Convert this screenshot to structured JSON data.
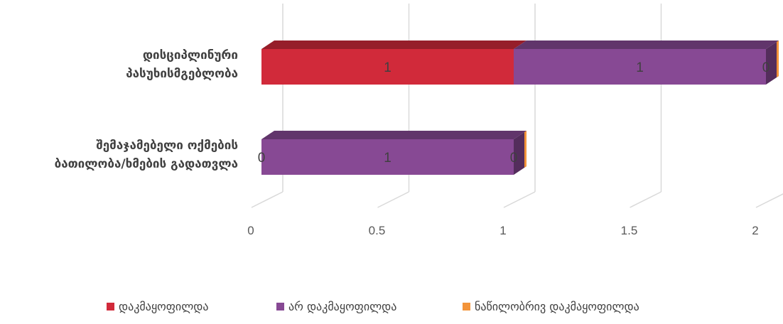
{
  "chart_data": {
    "type": "bar",
    "orientation": "horizontal",
    "stacked": true,
    "style": "3d",
    "categories": [
      [
        "დისციპლინური",
        "პასუხისმგებლობა"
      ],
      [
        "შემაჯამებელი ოქმების",
        "ბათილობა/ხმების გადათვლა"
      ]
    ],
    "series": [
      {
        "name": "დაკმაყოფილდა",
        "color": "#d12a3a",
        "values": [
          1,
          0
        ]
      },
      {
        "name": "არ დაკმაყოფილდა",
        "color": "#874994",
        "values": [
          1,
          1
        ]
      },
      {
        "name": "ნაწილობრივ დაკმაყოფილდა",
        "color": "#f3943a",
        "values": [
          0,
          0
        ]
      }
    ],
    "data_labels": [
      [
        "1",
        "1",
        "0"
      ],
      [
        "0",
        "1",
        "0"
      ]
    ],
    "x_ticks": [
      "0",
      "0.5",
      "1",
      "1.5",
      "2"
    ],
    "xlim": [
      0,
      2
    ],
    "grid": true,
    "legend_position": "bottom"
  }
}
